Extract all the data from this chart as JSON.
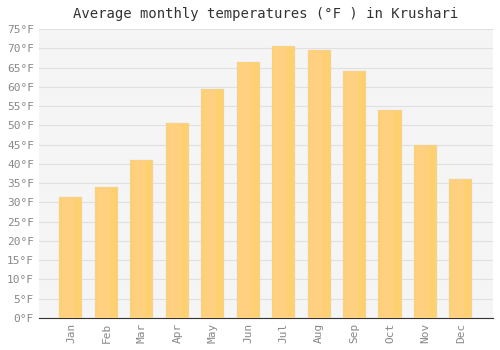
{
  "title": "Average monthly temperatures (°F ) in Krushari",
  "months": [
    "Jan",
    "Feb",
    "Mar",
    "Apr",
    "May",
    "Jun",
    "Jul",
    "Aug",
    "Sep",
    "Oct",
    "Nov",
    "Dec"
  ],
  "values": [
    31.5,
    34,
    41,
    50.5,
    59.5,
    66.5,
    70.5,
    69.5,
    64,
    54,
    45,
    36
  ],
  "bar_color_top": "#FFA500",
  "bar_color_bottom": "#FFD070",
  "bar_edge_color": "#DDDDDD",
  "background_color": "#FFFFFF",
  "plot_bg_color": "#F5F5F5",
  "grid_color": "#E0E0E0",
  "ylim": [
    0,
    75
  ],
  "yticks": [
    0,
    5,
    10,
    15,
    20,
    25,
    30,
    35,
    40,
    45,
    50,
    55,
    60,
    65,
    70,
    75
  ],
  "title_fontsize": 10,
  "tick_fontsize": 8,
  "font_family": "monospace"
}
